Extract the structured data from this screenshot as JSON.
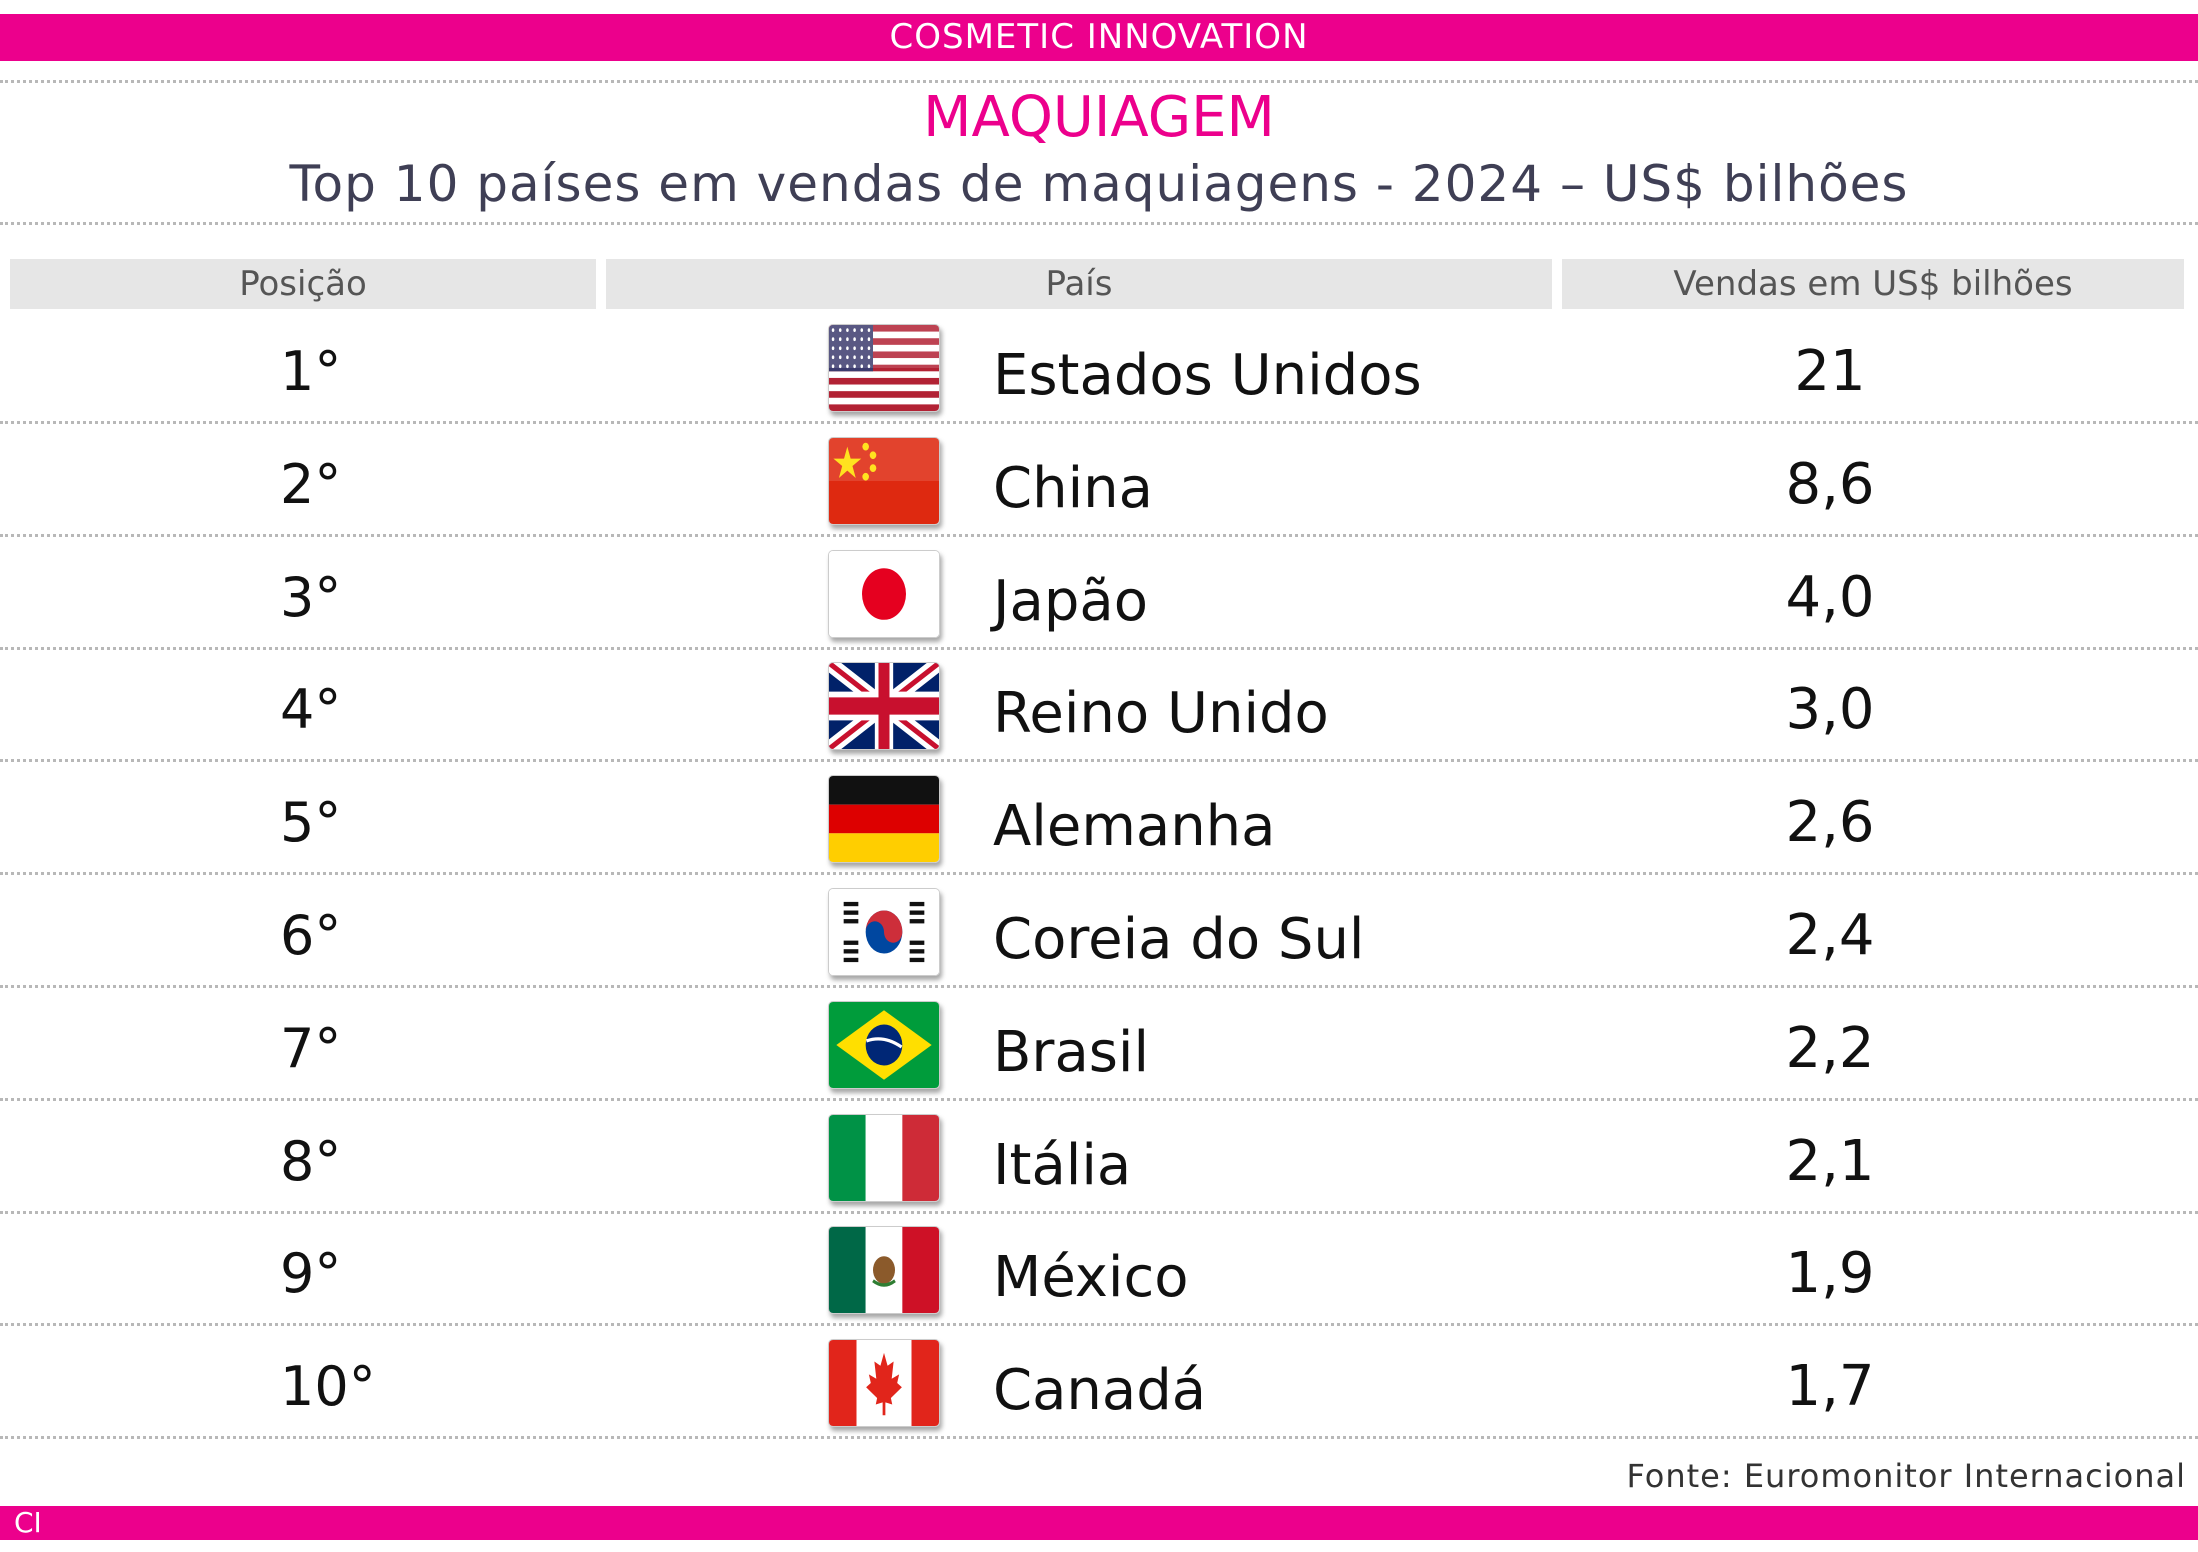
{
  "banner": {
    "text": "COSMETIC INNOVATION"
  },
  "section_title": "MAQUIAGEM",
  "subtitle": "Top 10 países em vendas de maquiagens  - 2024 – US$ bilhões",
  "headers": {
    "position": "Posição",
    "country": "País",
    "sales": "Vendas em US$ bilhões"
  },
  "source": "Fonte: Euromonitor Internacional",
  "footer": {
    "logo": "CI"
  },
  "colors": {
    "accent": "#ec008c",
    "header_bg": "#e6e6e6",
    "title_text": "#3f3f55"
  },
  "rows": [
    {
      "position": "1°",
      "country": "Estados Unidos",
      "value": "21",
      "flag": "flag-usa"
    },
    {
      "position": "2°",
      "country": "China",
      "value": "8,6",
      "flag": "flag-china"
    },
    {
      "position": "3°",
      "country": "Japão",
      "value": "4,0",
      "flag": "flag-japan"
    },
    {
      "position": "4°",
      "country": "Reino Unido",
      "value": "3,0",
      "flag": "flag-uk"
    },
    {
      "position": "5°",
      "country": "Alemanha",
      "value": "2,6",
      "flag": "flag-germany"
    },
    {
      "position": "6°",
      "country": "Coreia do Sul",
      "value": "2,4",
      "flag": "flag-south-korea"
    },
    {
      "position": "7°",
      "country": "Brasil",
      "value": "2,2",
      "flag": "flag-brazil"
    },
    {
      "position": "8°",
      "country": "Itália",
      "value": "2,1",
      "flag": "flag-italy"
    },
    {
      "position": "9°",
      "country": "México",
      "value": "1,9",
      "flag": "flag-mexico"
    },
    {
      "position": "10°",
      "country": "Canadá",
      "value": "1,7",
      "flag": "flag-canada"
    }
  ],
  "chart_data": {
    "type": "table",
    "title": "MAQUIAGEM",
    "subtitle": "Top 10 países em vendas de maquiagens  - 2024 – US$ bilhões",
    "columns": [
      "Posição",
      "País",
      "Vendas em US$ bilhões"
    ],
    "categories": [
      "Estados Unidos",
      "China",
      "Japão",
      "Reino Unido",
      "Alemanha",
      "Coreia do Sul",
      "Brasil",
      "Itália",
      "México",
      "Canadá"
    ],
    "values": [
      21,
      8.6,
      4.0,
      3.0,
      2.6,
      2.4,
      2.2,
      2.1,
      1.9,
      1.7
    ]
  }
}
